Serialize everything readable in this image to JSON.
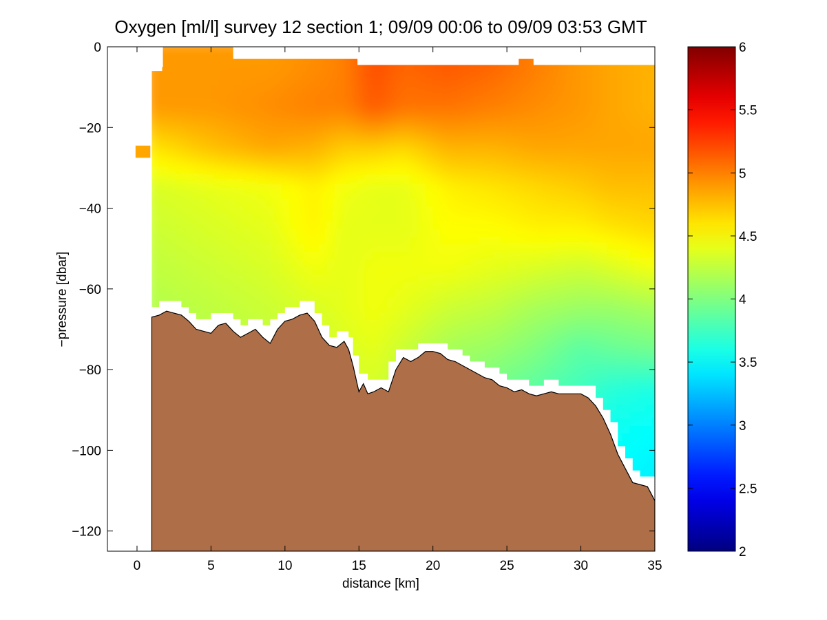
{
  "chart_data": {
    "type": "heatmap",
    "title": "Oxygen [ml/l] survey 12 section 1; 09/09 00:06 to 09/09 03:53 GMT",
    "xlabel": "distance [km]",
    "ylabel": "−pressure [dbar]",
    "xlim": [
      -2,
      35
    ],
    "ylim": [
      -125,
      0
    ],
    "xticks": [
      0,
      5,
      10,
      15,
      20,
      25,
      30,
      35
    ],
    "xtick_labels": [
      "0",
      "5",
      "10",
      "15",
      "20",
      "25",
      "30",
      "35"
    ],
    "yticks": [
      0,
      -20,
      -40,
      -60,
      -80,
      -100,
      -120
    ],
    "ytick_labels": [
      "0",
      "−20",
      "−40",
      "−60",
      "−80",
      "−100",
      "−120"
    ],
    "colorbar": {
      "colormap": "jet",
      "range": [
        2,
        6
      ],
      "ticks": [
        2,
        2.5,
        3,
        3.5,
        4,
        4.5,
        5,
        5.5,
        6
      ],
      "tick_labels": [
        "2",
        "2.5",
        "3",
        "3.5",
        "4",
        "4.5",
        "5",
        "5.5",
        "6"
      ]
    },
    "field": {
      "description_units": "ml/l",
      "x": [
        1,
        5,
        9,
        12,
        14,
        16,
        18,
        21,
        24,
        27,
        30,
        32,
        35
      ],
      "y": [
        -5,
        -15,
        -25,
        -35,
        -45,
        -55,
        -65,
        -75,
        -85,
        -95,
        -105
      ],
      "z": [
        [
          4.9,
          4.9,
          4.9,
          4.95,
          5.0,
          5.2,
          5.1,
          5.15,
          5.1,
          5.0,
          4.9,
          4.85,
          4.8
        ],
        [
          4.9,
          4.9,
          4.95,
          5.0,
          5.0,
          5.15,
          5.05,
          5.05,
          5.0,
          4.95,
          4.9,
          4.85,
          4.8
        ],
        [
          4.6,
          4.75,
          4.85,
          4.8,
          4.7,
          4.7,
          4.65,
          4.8,
          4.8,
          4.85,
          4.85,
          4.85,
          4.85
        ],
        [
          4.35,
          4.4,
          4.45,
          4.55,
          4.45,
          4.4,
          4.4,
          4.55,
          4.6,
          4.65,
          4.7,
          4.75,
          4.75
        ],
        [
          4.3,
          4.35,
          4.4,
          4.55,
          4.4,
          4.4,
          4.4,
          4.5,
          4.5,
          4.55,
          4.55,
          4.6,
          4.65
        ],
        [
          4.25,
          4.3,
          4.35,
          4.45,
          4.4,
          4.45,
          4.45,
          4.45,
          4.4,
          4.35,
          4.3,
          4.35,
          4.45
        ],
        [
          4.2,
          4.25,
          4.3,
          4.35,
          4.4,
          4.45,
          4.4,
          4.3,
          4.25,
          4.15,
          4.1,
          4.1,
          4.15
        ],
        [
          4.2,
          4.2,
          4.25,
          4.3,
          4.35,
          4.4,
          4.3,
          4.15,
          4.1,
          4.0,
          3.85,
          3.9,
          3.95
        ],
        [
          4.2,
          4.2,
          4.2,
          4.25,
          4.3,
          4.35,
          4.2,
          4.05,
          3.95,
          3.85,
          3.75,
          3.65,
          3.6
        ],
        [
          4.2,
          4.2,
          4.2,
          4.2,
          4.2,
          4.3,
          4.1,
          3.95,
          3.85,
          3.75,
          3.6,
          3.55,
          3.5
        ],
        [
          4.2,
          4.2,
          4.2,
          4.2,
          4.2,
          4.2,
          4.0,
          3.9,
          3.75,
          3.65,
          3.55,
          3.5,
          3.45
        ]
      ]
    },
    "data_top": [
      [
        1.0,
        -6.0
      ],
      [
        1.7,
        -6.0
      ],
      [
        1.7,
        -5.0
      ],
      [
        1.75,
        -5.0
      ],
      [
        1.75,
        0
      ],
      [
        6.5,
        0
      ],
      [
        6.5,
        -3.0
      ],
      [
        14.9,
        -3.0
      ],
      [
        14.9,
        -4.5
      ],
      [
        25.8,
        -4.5
      ],
      [
        25.8,
        -3.0
      ],
      [
        26.8,
        -3.0
      ],
      [
        26.8,
        -4.5
      ],
      [
        35,
        -4.5
      ]
    ],
    "left_patch": {
      "x": [
        -0.1,
        0.9
      ],
      "y": [
        -24.5,
        -27.5
      ]
    },
    "data_left_bottom": [
      [
        1.0,
        -64.5
      ],
      [
        1.8,
        -64.5
      ]
    ],
    "bathymetry": {
      "x": [
        1.0,
        1.5,
        2.0,
        2.5,
        3.0,
        3.5,
        4.0,
        4.5,
        5.0,
        5.5,
        6.0,
        6.5,
        7.0,
        7.5,
        8.0,
        8.5,
        9.0,
        9.5,
        10.0,
        10.5,
        11.0,
        11.5,
        12.0,
        12.5,
        13.0,
        13.5,
        14.0,
        14.3,
        14.6,
        15.0,
        15.3,
        15.6,
        16.0,
        16.5,
        17.0,
        17.5,
        18.0,
        18.5,
        19.0,
        19.5,
        20.0,
        20.5,
        21.0,
        21.5,
        22.0,
        22.5,
        23.0,
        23.5,
        24.0,
        24.5,
        25.0,
        25.5,
        26.0,
        26.5,
        27.0,
        27.5,
        28.0,
        28.5,
        29.0,
        29.5,
        30.0,
        30.5,
        31.0,
        31.5,
        32.0,
        32.5,
        33.0,
        33.5,
        34.0,
        34.5,
        35.0
      ],
      "y": [
        -67,
        -66.5,
        -65.5,
        -66,
        -66.5,
        -68,
        -70,
        -70.5,
        -71,
        -69,
        -68.5,
        -70.5,
        -72,
        -71,
        -70,
        -72,
        -73.5,
        -70,
        -68,
        -67.5,
        -66.5,
        -66,
        -68,
        -72,
        -74,
        -74.5,
        -73,
        -75,
        -79,
        -85.5,
        -83.5,
        -86,
        -85.5,
        -84.5,
        -85.5,
        -80,
        -77,
        -78,
        -77,
        -75.5,
        -75.5,
        -76,
        -77.5,
        -78,
        -79,
        -80,
        -81,
        -82,
        -82.5,
        -84,
        -84.5,
        -85.5,
        -85,
        -86,
        -86.5,
        -86,
        -85.5,
        -86,
        -86,
        -86,
        -86,
        -87,
        -89,
        -92,
        -96,
        -101,
        -104.5,
        -108,
        -108.5,
        -109,
        -112.5
      ]
    },
    "bathymetry_fill_color": "#ad6e48"
  },
  "colors": {
    "background": "#ffffff",
    "axis": "#000000",
    "bottom_outline": "#000000"
  }
}
